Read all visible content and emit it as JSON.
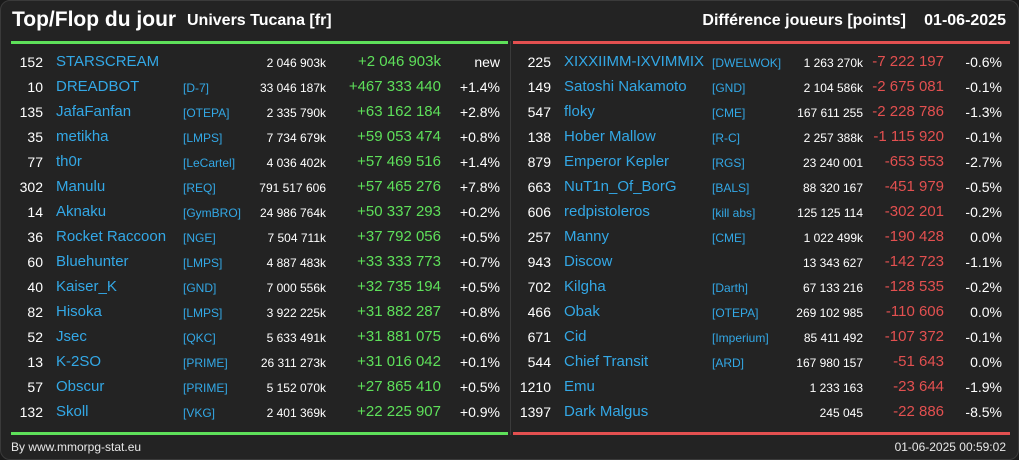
{
  "header": {
    "title": "Top/Flop du jour",
    "universe": "Univers Tucana [fr]",
    "metric": "Différence joueurs [points]",
    "date": "01-06-2025"
  },
  "colors": {
    "top": "#5ee05a",
    "flop": "#e35050",
    "link": "#33a8e6"
  },
  "top": [
    {
      "rank": "152",
      "name": "STARSCREAM",
      "guild": "",
      "total": "2 046 903k",
      "diff": "+2 046 903k",
      "pct": "new"
    },
    {
      "rank": "10",
      "name": "DREADBOT",
      "guild": "[D-7]",
      "total": "33 046 187k",
      "diff": "+467 333 440",
      "pct": "+1.4%"
    },
    {
      "rank": "135",
      "name": "JafaFanfan",
      "guild": "[OTEPA]",
      "total": "2 335 790k",
      "diff": "+63 162 184",
      "pct": "+2.8%"
    },
    {
      "rank": "35",
      "name": "metikha",
      "guild": "[LMPS]",
      "total": "7 734 679k",
      "diff": "+59 053 474",
      "pct": "+0.8%"
    },
    {
      "rank": "77",
      "name": "th0r",
      "guild": "[LeCartel]",
      "total": "4 036 402k",
      "diff": "+57 469 516",
      "pct": "+1.4%"
    },
    {
      "rank": "302",
      "name": "Manulu",
      "guild": "[REQ]",
      "total": "791 517 606",
      "diff": "+57 465 276",
      "pct": "+7.8%"
    },
    {
      "rank": "14",
      "name": "Aknaku",
      "guild": "[GymBRO]",
      "total": "24 986 764k",
      "diff": "+50 337 293",
      "pct": "+0.2%"
    },
    {
      "rank": "36",
      "name": "Rocket Raccoon",
      "guild": "[NGE]",
      "total": "7 504 711k",
      "diff": "+37 792 056",
      "pct": "+0.5%"
    },
    {
      "rank": "60",
      "name": "Bluehunter",
      "guild": "[LMPS]",
      "total": "4 887 483k",
      "diff": "+33 333 773",
      "pct": "+0.7%"
    },
    {
      "rank": "40",
      "name": "Kaiser_K",
      "guild": "[GND]",
      "total": "7 000 556k",
      "diff": "+32 735 194",
      "pct": "+0.5%"
    },
    {
      "rank": "82",
      "name": "Hisoka",
      "guild": "[LMPS]",
      "total": "3 922 225k",
      "diff": "+31 882 287",
      "pct": "+0.8%"
    },
    {
      "rank": "52",
      "name": "Jsec",
      "guild": "[QKC]",
      "total": "5 633 491k",
      "diff": "+31 881 075",
      "pct": "+0.6%"
    },
    {
      "rank": "13",
      "name": "K-2SO",
      "guild": "[PRIME]",
      "total": "26 311 273k",
      "diff": "+31 016 042",
      "pct": "+0.1%"
    },
    {
      "rank": "57",
      "name": "Obscur",
      "guild": "[PRIME]",
      "total": "5 152 070k",
      "diff": "+27 865 410",
      "pct": "+0.5%"
    },
    {
      "rank": "132",
      "name": "Skoll",
      "guild": "[VKG]",
      "total": "2 401 369k",
      "diff": "+22 225 907",
      "pct": "+0.9%"
    }
  ],
  "flop": [
    {
      "rank": "225",
      "name": "XIXXIIMM-IXVIMMIX",
      "guild": "[DWELWOK]",
      "total": "1 263 270k",
      "diff": "-7 222 197",
      "pct": "-0.6%"
    },
    {
      "rank": "149",
      "name": "Satoshi Nakamoto",
      "guild": "[GND]",
      "total": "2 104 586k",
      "diff": "-2 675 081",
      "pct": "-0.1%"
    },
    {
      "rank": "547",
      "name": "floky",
      "guild": "[CME]",
      "total": "167 611 255",
      "diff": "-2 228 786",
      "pct": "-1.3%"
    },
    {
      "rank": "138",
      "name": "Hober Mallow",
      "guild": "[R-C]",
      "total": "2 257 388k",
      "diff": "-1 115 920",
      "pct": "-0.1%"
    },
    {
      "rank": "879",
      "name": "Emperor Kepler",
      "guild": "[RGS]",
      "total": "23 240 001",
      "diff": "-653 553",
      "pct": "-2.7%"
    },
    {
      "rank": "663",
      "name": "NuT1n_Of_BorG",
      "guild": "[BALS]",
      "total": "88 320 167",
      "diff": "-451 979",
      "pct": "-0.5%"
    },
    {
      "rank": "606",
      "name": "redpistoleros",
      "guild": "[kill abs]",
      "total": "125 125 114",
      "diff": "-302 201",
      "pct": "-0.2%"
    },
    {
      "rank": "257",
      "name": "Manny",
      "guild": "[CME]",
      "total": "1 022 499k",
      "diff": "-190 428",
      "pct": "0.0%"
    },
    {
      "rank": "943",
      "name": "Discow",
      "guild": "",
      "total": "13 343 627",
      "diff": "-142 723",
      "pct": "-1.1%"
    },
    {
      "rank": "702",
      "name": "Kilgha",
      "guild": "[Darth]",
      "total": "67 133 216",
      "diff": "-128 535",
      "pct": "-0.2%"
    },
    {
      "rank": "466",
      "name": "Obak",
      "guild": "[OTEPA]",
      "total": "269 102 985",
      "diff": "-110 606",
      "pct": "0.0%"
    },
    {
      "rank": "671",
      "name": "Cid",
      "guild": "[Imperium]",
      "total": "85 411 492",
      "diff": "-107 372",
      "pct": "-0.1%"
    },
    {
      "rank": "544",
      "name": "Chief Transit",
      "guild": "[ARD]",
      "total": "167 980 157",
      "diff": "-51 643",
      "pct": "0.0%"
    },
    {
      "rank": "1210",
      "name": "Emu",
      "guild": "",
      "total": "1 233 163",
      "diff": "-23 644",
      "pct": "-1.9%"
    },
    {
      "rank": "1397",
      "name": "Dark Malgus",
      "guild": "",
      "total": "245 045",
      "diff": "-22 886",
      "pct": "-8.5%"
    }
  ],
  "footer": {
    "by": "By www.mmorpg-stat.eu",
    "timestamp": "01-06-2025 00:59:02"
  }
}
